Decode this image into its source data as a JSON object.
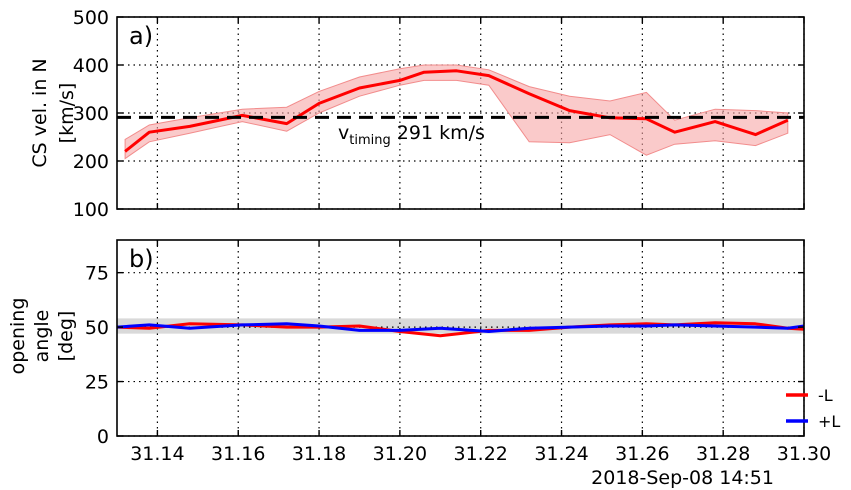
{
  "chart_data": [
    {
      "type": "line",
      "panel_label": "a)",
      "ylabel": [
        "CS vel. in N",
        "[km/s]"
      ],
      "xlim": [
        31.13,
        31.3
      ],
      "ylim": [
        100,
        500
      ],
      "xticks": [
        31.14,
        31.16,
        31.18,
        31.2,
        31.22,
        31.24,
        31.26,
        31.28,
        31.3
      ],
      "yticks": [
        100,
        200,
        300,
        400,
        500
      ],
      "grid": true,
      "series": [
        {
          "color": "#ff0000",
          "x": [
            31.132,
            31.138,
            31.148,
            31.161,
            31.172,
            31.18,
            31.19,
            31.2,
            31.206,
            31.214,
            31.222,
            31.232,
            31.242,
            31.252,
            31.261,
            31.268,
            31.278,
            31.288,
            31.296
          ],
          "y": [
            220,
            260,
            272,
            295,
            278,
            320,
            352,
            368,
            385,
            388,
            378,
            340,
            305,
            290,
            288,
            260,
            282,
            255,
            285
          ],
          "band_lower": [
            205,
            240,
            258,
            282,
            262,
            300,
            335,
            358,
            368,
            368,
            358,
            240,
            238,
            255,
            212,
            235,
            242,
            232,
            258
          ],
          "band_upper": [
            245,
            275,
            290,
            308,
            312,
            345,
            375,
            392,
            400,
            400,
            390,
            355,
            335,
            325,
            343,
            285,
            308,
            305,
            300
          ]
        }
      ],
      "hline": {
        "y": 291,
        "style": "dashed",
        "color": "#000000"
      },
      "annotation": {
        "main": "v",
        "sub": "timing",
        "rest": " 291 km/s"
      }
    },
    {
      "type": "line",
      "panel_label": "b)",
      "ylabel": [
        "opening",
        "angle",
        "[deg]"
      ],
      "xlim": [
        31.13,
        31.3
      ],
      "ylim": [
        0,
        90
      ],
      "xticks": [
        31.14,
        31.16,
        31.18,
        31.2,
        31.22,
        31.24,
        31.26,
        31.28,
        31.3
      ],
      "xtick_labels": [
        "31.14",
        "31.16",
        "31.18",
        "31.20",
        "31.22",
        "31.24",
        "31.26",
        "31.28",
        "31.30"
      ],
      "yticks": [
        0,
        25,
        50,
        75
      ],
      "grid": true,
      "band": {
        "lower": 47,
        "upper": 54,
        "color": "#d9d9d9"
      },
      "series": [
        {
          "name": "-L",
          "color": "#ff0000",
          "x": [
            31.13,
            31.138,
            31.148,
            31.161,
            31.172,
            31.18,
            31.19,
            31.2,
            31.21,
            31.222,
            31.232,
            31.242,
            31.252,
            31.261,
            31.268,
            31.278,
            31.288,
            31.296,
            31.3
          ],
          "y": [
            50.0,
            49.5,
            51.5,
            51.0,
            50.0,
            50.0,
            50.5,
            48.0,
            46.0,
            48.5,
            48.5,
            50.0,
            51.0,
            51.5,
            51.0,
            52.0,
            51.5,
            49.5,
            49.0
          ]
        },
        {
          "name": "+L",
          "color": "#0000ff",
          "x": [
            31.13,
            31.138,
            31.148,
            31.161,
            31.172,
            31.18,
            31.19,
            31.2,
            31.21,
            31.222,
            31.232,
            31.242,
            31.252,
            31.261,
            31.268,
            31.278,
            31.288,
            31.296,
            31.3
          ],
          "y": [
            50.0,
            51.0,
            49.5,
            51.0,
            51.5,
            50.5,
            48.5,
            48.5,
            49.5,
            48.0,
            49.5,
            50.0,
            50.5,
            50.5,
            51.0,
            50.5,
            50.0,
            49.5,
            50.5
          ]
        }
      ],
      "legend": {
        "placement": "right-outside-bottom",
        "entries": [
          "-L",
          "+L"
        ]
      }
    }
  ],
  "footer": {
    "timestamp": "2018-Sep-08 14:51"
  }
}
